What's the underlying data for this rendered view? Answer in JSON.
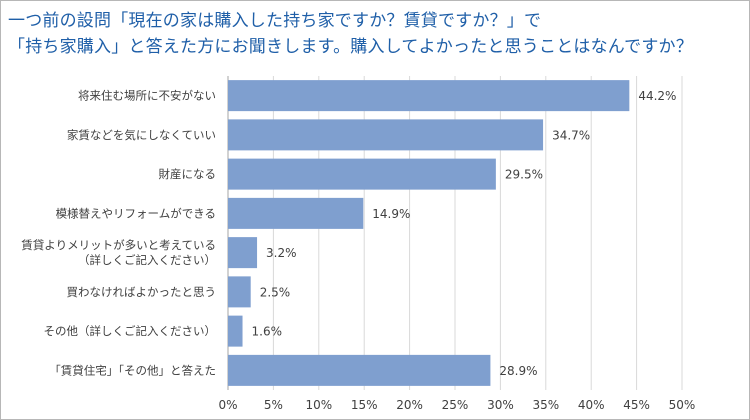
{
  "title_lines": [
    "一つ前の設問「現在の家は購入した持ち家ですか？賃貸ですか？」で",
    "「持ち家購入」と答えた方にお聞きします。購入してよかったと思うことはなんですか？"
  ],
  "chart_data": {
    "type": "bar",
    "orientation": "horizontal",
    "categories": [
      [
        "将来住む場所に不安がない"
      ],
      [
        "家賃などを気にしなくていい"
      ],
      [
        "財産になる"
      ],
      [
        "模様替えやリフォームができる"
      ],
      [
        "賃貸よりメリットが多いと考えている",
        "（詳しくご記入ください）"
      ],
      [
        "買わなければよかったと思う"
      ],
      [
        "その他（詳しくご記入ください）"
      ],
      [
        "「賃貸住宅」「その他」と答えた"
      ]
    ],
    "values": [
      44.2,
      34.7,
      29.5,
      14.9,
      3.2,
      2.5,
      1.6,
      28.9
    ],
    "value_labels": [
      "44.2%",
      "34.7%",
      "29.5%",
      "14.9%",
      "3.2%",
      "2.5%",
      "1.6%",
      "28.9%"
    ],
    "xlim": [
      0,
      50
    ],
    "x_ticks": [
      0,
      5,
      10,
      15,
      20,
      25,
      30,
      35,
      40,
      45,
      50
    ],
    "x_tick_labels": [
      "0%",
      "5%",
      "10%",
      "15%",
      "20%",
      "25%",
      "30%",
      "35%",
      "40%",
      "45%",
      "50%"
    ],
    "grid": true,
    "colors": {
      "bar": "#7f9fcf",
      "grid": "#d9d9d9",
      "axis": "#a6a6a6",
      "title": "#1f5fa8"
    }
  }
}
